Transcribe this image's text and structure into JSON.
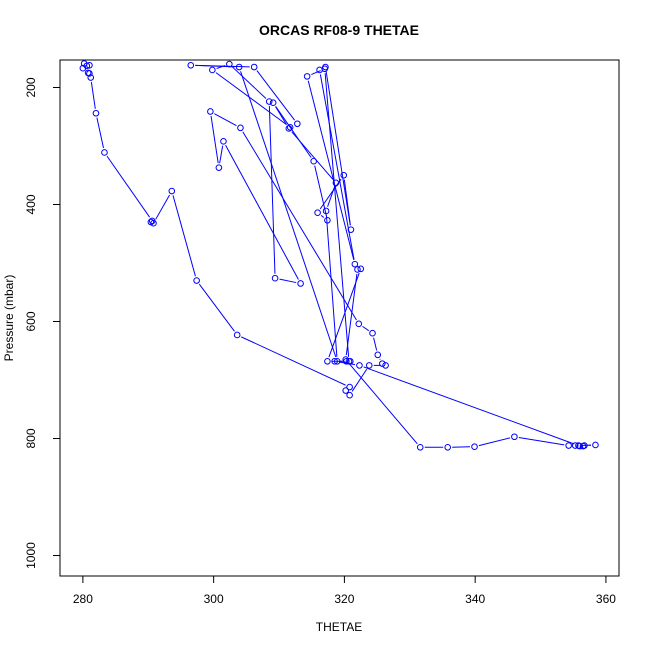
{
  "chart_data": {
    "type": "line",
    "title": "ORCAS RF08-9 THETAE",
    "xlabel": "THETAE",
    "ylabel": "Pressure (mbar)",
    "xlim": [
      276.5,
      362
    ],
    "ylim": [
      1035,
      153
    ],
    "y_reversed": true,
    "x_ticks": [
      280,
      300,
      320,
      340,
      360
    ],
    "y_ticks": [
      200,
      400,
      600,
      800,
      1000
    ],
    "grid": false,
    "line_color": "#0000ff",
    "marker": "open-circle",
    "series": [
      {
        "x": [
          280.0,
          280.2,
          280.8,
          281.0,
          280.6,
          281.0,
          281.2,
          282.0,
          283.3,
          290.6,
          290.4,
          290.8,
          293.6,
          297.4,
          303.6,
          320.8,
          320.2,
          320.8,
          323.8,
          326.3,
          325.8,
          325.1,
          324.3,
          322.2,
          304.1,
          299.5,
          300.8,
          301.5,
          313.3,
          309.4,
          308.5,
          302.4,
          299.8,
          311.7,
          312.8,
          306.2,
          296.5,
          303.9,
          318.9,
          317.2,
          318.7,
          311.5,
          309.1,
          315.3,
          317.4,
          315.9,
          319.9,
          321.0,
          317.1,
          316.2,
          321.6,
          314.3,
          317.0,
          320.7,
          317.4,
          322.5,
          322.0,
          320.2,
          331.6,
          335.8,
          339.9,
          346.0,
          354.3,
          355.3,
          356.0,
          356.5,
          356.7,
          358.4,
          355.8,
          322.3,
          318.5,
          320.3,
          320.9
        ],
        "y": [
          167,
          159,
          175,
          162,
          163,
          176,
          183,
          244,
          311,
          428,
          430,
          432,
          377,
          530,
          623,
          712,
          718,
          726,
          675,
          675,
          672,
          657,
          620,
          604,
          269,
          241,
          337,
          292,
          535,
          526,
          224,
          160,
          170,
          268,
          262,
          165,
          162,
          165,
          668,
          411,
          363,
          270,
          226,
          326,
          427,
          414,
          350,
          443,
          165,
          170,
          502,
          181,
          168,
          668,
          668,
          510,
          511,
          665,
          815,
          815,
          814,
          797,
          812,
          812,
          813,
          813,
          812,
          811,
          812,
          675,
          668,
          668,
          668
        ]
      }
    ]
  }
}
